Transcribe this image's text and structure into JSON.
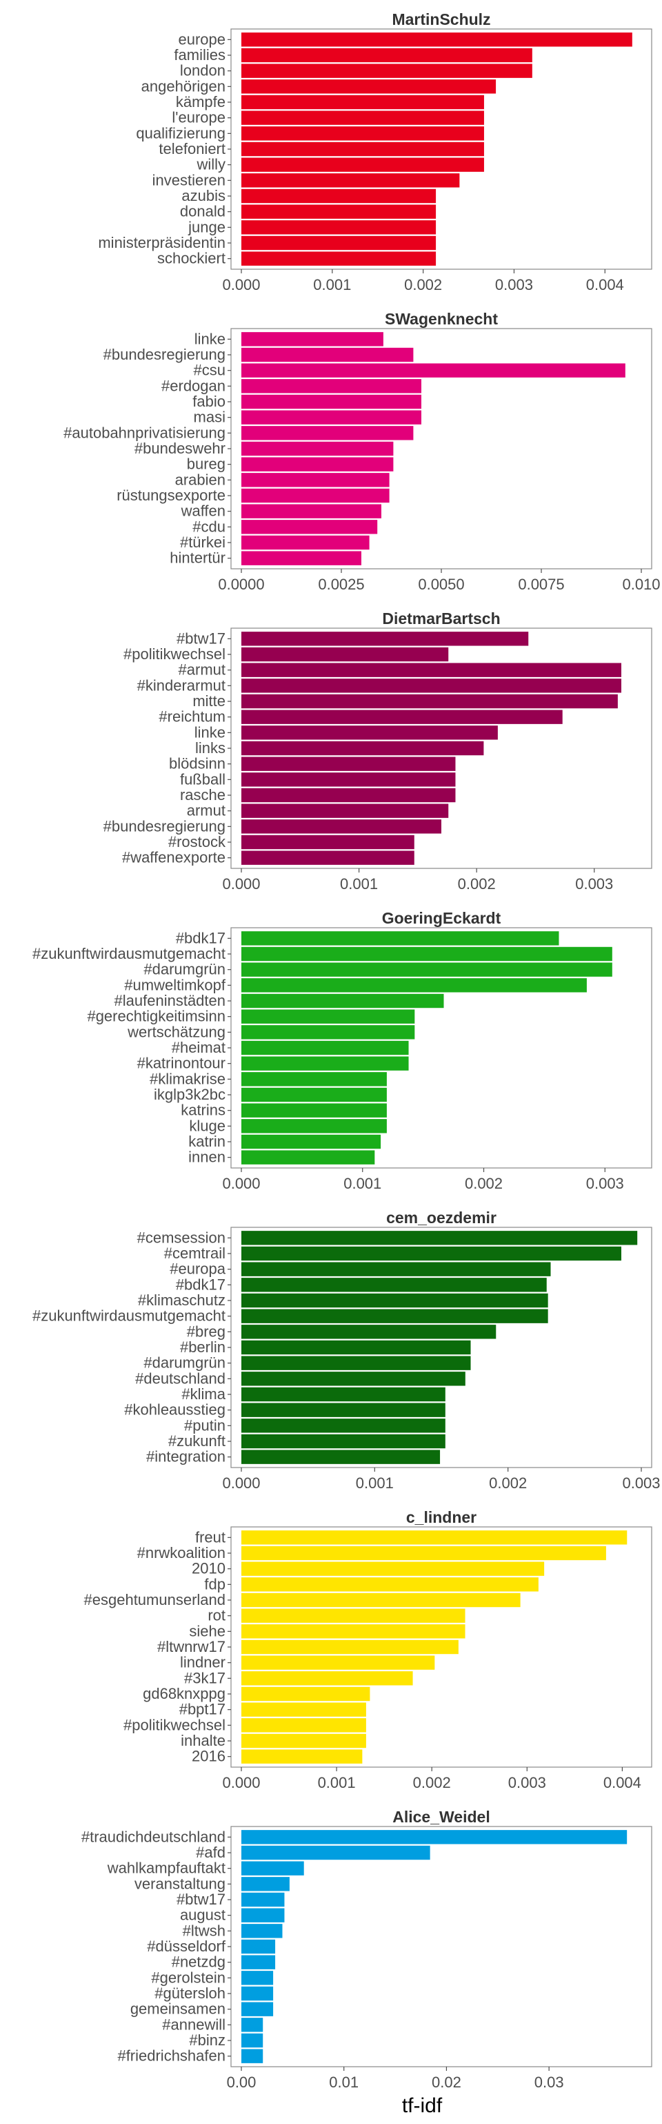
{
  "chart_data": {
    "type": "bar",
    "orientation": "horizontal",
    "xlabel": "tf-idf",
    "grid": false,
    "panels": [
      {
        "title": "MartinSchulz",
        "color": "#e8001c",
        "xlim": [
          0,
          0.0044
        ],
        "ticks": [
          0.0,
          0.001,
          0.002,
          0.003,
          0.004
        ],
        "tick_labels": [
          "0.000",
          "0.001",
          "0.002",
          "0.003",
          "0.004"
        ],
        "categories": [
          "europe",
          "families",
          "london",
          "angehörigen",
          "kämpfe",
          "l'europe",
          "qualifizierung",
          "telefoniert",
          "willy",
          "investieren",
          "azubis",
          "donald",
          "junge",
          "ministerpräsidentin",
          "schockiert"
        ],
        "values": [
          0.0043,
          0.0032,
          0.0032,
          0.0028,
          0.00267,
          0.00267,
          0.00267,
          0.00267,
          0.00267,
          0.0024,
          0.00214,
          0.00214,
          0.00214,
          0.00214,
          0.00214
        ]
      },
      {
        "title": "SWagenknecht",
        "color": "#e2007a",
        "xlim": [
          0,
          0.01
        ],
        "ticks": [
          0.0,
          0.0025,
          0.005,
          0.0075,
          0.01
        ],
        "tick_labels": [
          "0.0000",
          "0.0025",
          "0.0050",
          "0.0075",
          "0.010"
        ],
        "categories": [
          "linke",
          "#bundesregierung",
          "#csu",
          "#erdogan",
          "fabio",
          "masi",
          "#autobahnprivatisierung",
          "#bundeswehr",
          "bureg",
          "arabien",
          "rüstungsexporte",
          "waffen",
          "#cdu",
          "#türkei",
          "hintertür"
        ],
        "values": [
          0.00355,
          0.0043,
          0.0096,
          0.0045,
          0.0045,
          0.0045,
          0.0043,
          0.0038,
          0.0038,
          0.0037,
          0.0037,
          0.0035,
          0.0034,
          0.0032,
          0.003
        ]
      },
      {
        "title": "DietmarBartsch",
        "color": "#960050",
        "xlim": [
          0,
          0.0034
        ],
        "ticks": [
          0.0,
          0.001,
          0.002,
          0.003
        ],
        "tick_labels": [
          "0.000",
          "0.001",
          "0.002",
          "0.003"
        ],
        "categories": [
          "#btw17",
          "#politikwechsel",
          "#armut",
          "#kinderarmut",
          "mitte",
          "#reichtum",
          "linke",
          "links",
          "blödsinn",
          "fußball",
          "rasche",
          "armut",
          "#bundesregierung",
          "#rostock",
          "#waffenexporte"
        ],
        "values": [
          0.00244,
          0.00176,
          0.00323,
          0.00323,
          0.0032,
          0.00273,
          0.00218,
          0.00206,
          0.00182,
          0.00182,
          0.00182,
          0.00176,
          0.0017,
          0.00147,
          0.00147
        ]
      },
      {
        "title": "GoeringEckardt",
        "color": "#1aad1a",
        "xlim": [
          0,
          0.0033
        ],
        "ticks": [
          0.0,
          0.001,
          0.002,
          0.003
        ],
        "tick_labels": [
          "0.000",
          "0.001",
          "0.002",
          "0.003"
        ],
        "categories": [
          "#bdk17",
          "#zukunftwirdausmutgemacht",
          "#darumgrün",
          "#umweltimkopf",
          "#laufeninstädten",
          "#gerechtigkeitimsinn",
          "wertschätzung",
          "#heimat",
          "#katrinontour",
          "#klimakrise",
          "ikglp3k2bc",
          "katrins",
          "kluge",
          "katrin",
          "innen"
        ],
        "values": [
          0.00262,
          0.00306,
          0.00306,
          0.00285,
          0.00167,
          0.00143,
          0.00143,
          0.00138,
          0.00138,
          0.0012,
          0.0012,
          0.0012,
          0.0012,
          0.00115,
          0.0011
        ]
      },
      {
        "title": "cem_oezdemir",
        "color": "#0b6b0b",
        "xlim": [
          0,
          0.003
        ],
        "ticks": [
          0.0,
          0.001,
          0.002,
          0.003
        ],
        "tick_labels": [
          "0.000",
          "0.001",
          "0.002",
          "0.003"
        ],
        "categories": [
          "#cemsession",
          "#cemtrail",
          "#europa",
          "#bdk17",
          "#klimaschutz",
          "#zukunftwirdausmutgemacht",
          "#breg",
          "#berlin",
          "#darumgrün",
          "#deutschland",
          "#klima",
          "#kohleausstieg",
          "#putin",
          "#zukunft",
          "#integration"
        ],
        "values": [
          0.00297,
          0.00285,
          0.00232,
          0.00229,
          0.0023,
          0.0023,
          0.00191,
          0.00172,
          0.00172,
          0.00168,
          0.00153,
          0.00153,
          0.00153,
          0.00153,
          0.00149
        ]
      },
      {
        "title": "c_lindner",
        "color": "#ffe500",
        "xlim": [
          0,
          0.0042
        ],
        "ticks": [
          0.0,
          0.001,
          0.002,
          0.003,
          0.004
        ],
        "tick_labels": [
          "0.000",
          "0.001",
          "0.002",
          "0.003",
          "0.004"
        ],
        "categories": [
          "freut",
          "#nrwkoalition",
          "2010",
          "fdp",
          "#esgehtumunserland",
          "rot",
          "siehe",
          "#ltwnrw17",
          "lindner",
          "#3k17",
          "gd68knxppg",
          "#bpt17",
          "#politikwechsel",
          "inhalte",
          "2016"
        ],
        "values": [
          0.00405,
          0.00383,
          0.00318,
          0.00312,
          0.00293,
          0.00235,
          0.00235,
          0.00228,
          0.00203,
          0.0018,
          0.00135,
          0.00131,
          0.00131,
          0.00131,
          0.00127
        ]
      },
      {
        "title": "Alice_Weidel",
        "color": "#009ee0",
        "xlim": [
          0,
          0.039
        ],
        "ticks": [
          0.0,
          0.01,
          0.02,
          0.03
        ],
        "tick_labels": [
          "0.00",
          "0.01",
          "0.02",
          "0.03"
        ],
        "categories": [
          "#traudichdeutschland",
          "#afd",
          "wahlkampfauftakt",
          "veranstaltung",
          "#btw17",
          "august",
          "#ltwsh",
          "#düsseldorf",
          "#netzdg",
          "#gerolstein",
          "#gütersloh",
          "gemeinsamen",
          "#annewill",
          "#binz",
          "#friedrichshafen"
        ],
        "values": [
          0.0376,
          0.0184,
          0.0061,
          0.0047,
          0.0042,
          0.0042,
          0.004,
          0.0033,
          0.0033,
          0.0031,
          0.0031,
          0.0031,
          0.0021,
          0.0021,
          0.0021
        ]
      }
    ]
  }
}
